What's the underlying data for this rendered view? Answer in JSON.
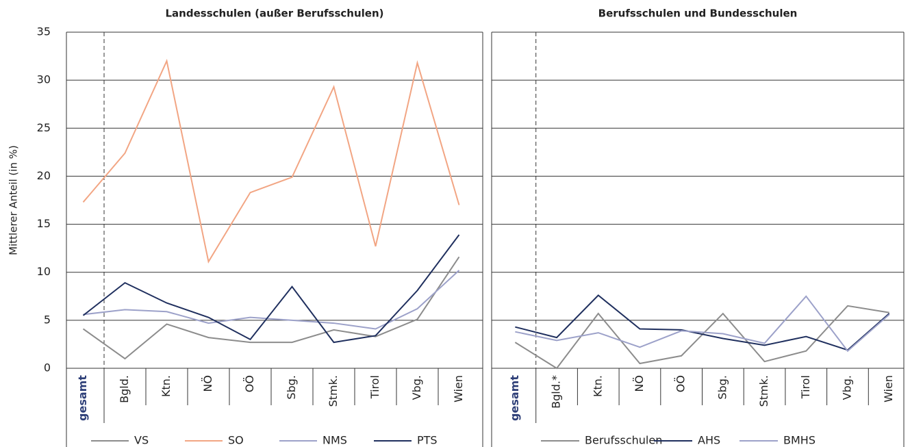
{
  "chart_data": [
    {
      "type": "line",
      "title": "Landesschulen (außer Berufsschulen)",
      "y_label": "Mittlerer Anteil (in %)",
      "categories": [
        "gesamt",
        "Bgld.",
        "Ktn.",
        "NÖ",
        "OÖ",
        "Sbg.",
        "Stmk.",
        "Tirol",
        "Vbg.",
        "Wien"
      ],
      "series": [
        {
          "name": "VS",
          "color": "#8c8c8c",
          "values": [
            4.1,
            1.0,
            4.6,
            3.2,
            2.7,
            2.7,
            4.0,
            3.3,
            5.1,
            11.6
          ]
        },
        {
          "name": "SO",
          "color": "#f2a583",
          "values": [
            17.3,
            22.4,
            32.0,
            11.1,
            18.3,
            19.9,
            29.3,
            12.7,
            31.8,
            17.0
          ]
        },
        {
          "name": "NMS",
          "color": "#9ca1c9",
          "values": [
            5.6,
            6.1,
            5.9,
            4.7,
            5.3,
            5.0,
            4.7,
            4.1,
            6.2,
            10.2
          ]
        },
        {
          "name": "PTS",
          "color": "#1f2f5e",
          "values": [
            5.5,
            8.9,
            6.8,
            5.3,
            3.0,
            8.5,
            2.7,
            3.4,
            8.1,
            13.9
          ]
        }
      ],
      "ylim": [
        0,
        35
      ],
      "yticks": [
        0,
        5,
        10,
        15,
        20,
        25,
        30,
        35
      ],
      "grid": true
    },
    {
      "type": "line",
      "title": "Berufsschulen und Bundesschulen",
      "categories": [
        "gesamt",
        "Bgld.*",
        "Ktn.",
        "NÖ",
        "OÖ",
        "Sbg.",
        "Stmk.",
        "Tirol",
        "Vbg.",
        "Wien"
      ],
      "series": [
        {
          "name": "Berufsschulen",
          "color": "#8c8c8c",
          "values": [
            2.7,
            0.0,
            5.7,
            0.5,
            1.3,
            5.7,
            0.7,
            1.8,
            6.5,
            5.8
          ]
        },
        {
          "name": "AHS",
          "color": "#1f2f5e",
          "values": [
            4.3,
            3.2,
            7.6,
            4.1,
            4.0,
            3.1,
            2.4,
            3.3,
            1.9,
            5.7
          ]
        },
        {
          "name": "BMHS",
          "color": "#9ca1c9",
          "values": [
            3.8,
            2.9,
            3.7,
            2.2,
            3.9,
            3.6,
            2.6,
            7.5,
            1.8,
            5.6
          ]
        }
      ],
      "ylim": [
        0,
        35
      ],
      "yticks": [
        0,
        5,
        10,
        15,
        20,
        25,
        30,
        35
      ],
      "grid": true
    }
  ]
}
